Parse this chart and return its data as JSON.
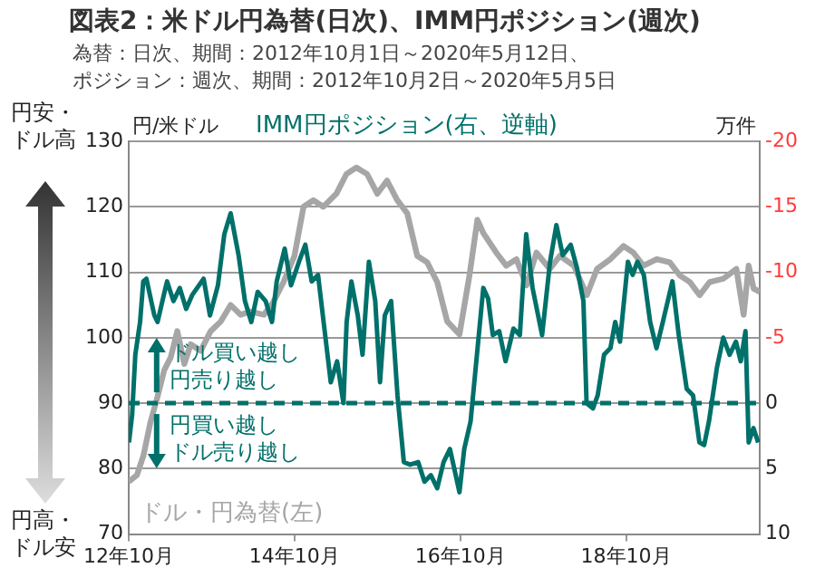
{
  "chart_data": {
    "type": "line",
    "title": "図表2：米ドル円為替(日次)、IMM円ポジション(週次)",
    "subtitle": "為替：日次、期間：2012年10月1日～2020年5月12日、ポジション：週次、期間：2012年10月2日～2020年5月5日",
    "ylabel": "円/米ドル",
    "y2label": "万件",
    "annotations": [
      "円安・",
      "ドル高",
      "円高・",
      "ドル安",
      {
        "text": "ドル買い越し",
        "x": "2013-02-01",
        "y": 90
      },
      "円売り越し",
      {
        "text": "円買い越し",
        "x": "2013-02-01",
        "y": 90
      },
      "ドル売り越し"
    ],
    "series": [
      {
        "name": "IMM円ポジション(右、逆軸)",
        "color": "#00706a",
        "axis": "y2",
        "x": [
          "2012-10-02",
          "2012-10-16",
          "2012-10-30",
          "2012-11-20",
          "2012-12-04",
          "2012-12-18",
          "2013-01-08",
          "2013-01-22",
          "2013-02-05",
          "2013-03-05",
          "2013-03-19",
          "2013-04-16",
          "2013-05-14",
          "2013-06-11",
          "2013-07-09",
          "2013-08-27",
          "2013-09-24",
          "2013-10-29",
          "2013-11-26",
          "2013-12-24",
          "2014-01-28",
          "2014-02-25",
          "2014-03-25",
          "2014-04-22",
          "2014-05-27",
          "2014-06-24",
          "2014-07-15",
          "2014-08-19",
          "2014-09-16",
          "2014-10-21",
          "2014-11-18",
          "2014-12-16",
          "2015-01-13",
          "2015-02-10",
          "2015-03-10",
          "2015-04-07",
          "2015-05-05",
          "2015-05-19",
          "2015-06-09",
          "2015-07-07",
          "2015-07-28",
          "2015-08-25",
          "2015-09-22",
          "2015-10-13",
          "2015-11-03",
          "2015-12-01",
          "2015-12-29",
          "2016-01-26",
          "2016-02-23",
          "2016-03-29",
          "2016-04-26",
          "2016-05-24",
          "2016-06-21",
          "2016-07-19",
          "2016-08-16",
          "2016-09-27",
          "2016-10-18",
          "2016-11-15",
          "2016-12-13",
          "2017-01-10",
          "2017-01-31",
          "2017-02-21",
          "2017-03-21",
          "2017-04-18",
          "2017-05-23",
          "2017-06-20",
          "2017-07-18",
          "2017-08-15",
          "2017-09-26",
          "2017-10-31",
          "2017-11-28",
          "2017-12-26",
          "2018-01-30",
          "2018-02-27",
          "2018-03-27",
          "2018-04-10",
          "2018-05-08",
          "2018-05-29",
          "2018-06-26",
          "2018-07-24",
          "2018-08-14",
          "2018-09-04",
          "2018-10-09",
          "2018-10-30",
          "2018-11-20",
          "2018-12-18",
          "2019-01-15",
          "2019-02-12",
          "2019-03-12",
          "2019-04-23",
          "2019-05-21",
          "2019-06-25",
          "2019-07-23",
          "2019-08-20",
          "2019-09-10",
          "2019-10-01",
          "2019-11-05",
          "2019-12-03",
          "2019-12-31",
          "2020-01-28",
          "2020-02-18",
          "2020-03-10",
          "2020-03-24",
          "2020-04-14",
          "2020-05-05"
        ],
        "values": [
          3.0,
          0.9,
          -3.7,
          -6.2,
          -9.3,
          -9.5,
          -7.8,
          -6.7,
          -6.2,
          -8.3,
          -9.3,
          -7.8,
          -8.8,
          -7.2,
          -8.3,
          -9.5,
          -6.7,
          -9.0,
          -12.9,
          -14.5,
          -11.3,
          -7.8,
          -6.2,
          -8.5,
          -7.8,
          -6.2,
          -9.3,
          -11.8,
          -9.0,
          -10.8,
          -12.1,
          -9.3,
          -9.8,
          -5.7,
          -1.6,
          -3.2,
          0,
          -6.2,
          -9.3,
          -6.7,
          -3.7,
          -10.8,
          -7.8,
          -1.6,
          -6.7,
          -7.8,
          -0.6,
          4.5,
          4.7,
          4.5,
          6.0,
          5.5,
          6.5,
          4.5,
          3.5,
          6.8,
          3.5,
          1.4,
          -3.7,
          -8.8,
          -8.0,
          -5.2,
          -5.5,
          -3.2,
          -5.7,
          -5.2,
          -12.9,
          -8.8,
          -5.2,
          -10.8,
          -13.6,
          -11.3,
          -12.1,
          -10.3,
          -7.8,
          0,
          0.4,
          -0.6,
          -3.7,
          -4.2,
          -6.2,
          -4.7,
          -10.8,
          -9.8,
          -10.8,
          -9.8,
          -6.2,
          -4.2,
          -6.2,
          -9.3,
          -5.2,
          -1.1,
          -0.6,
          3.0,
          3.2,
          1.4,
          -2.7,
          -5.0,
          -3.7,
          -4.7,
          -3.2,
          -5.5,
          3.0,
          1.9,
          3.0
        ]
      },
      {
        "name": "ドル・円為替(左)",
        "color": "#a6a6a6",
        "x": [
          "2012-10-01",
          "2012-11-06",
          "2012-12-05",
          "2013-01-04",
          "2013-02-05",
          "2013-03-06",
          "2013-04-04",
          "2013-05-03",
          "2013-06-03",
          "2013-07-01",
          "2013-08-14",
          "2013-09-27",
          "2013-11-11",
          "2013-12-24",
          "2014-02-06",
          "2014-03-21",
          "2014-05-19",
          "2014-07-01",
          "2014-08-14",
          "2014-10-01",
          "2014-11-10",
          "2014-12-24",
          "2015-02-05",
          "2015-04-04",
          "2015-05-18",
          "2015-07-01",
          "2015-08-17",
          "2015-10-01",
          "2015-11-13",
          "2015-12-28",
          "2016-02-10",
          "2016-03-25",
          "2016-05-08",
          "2016-06-21",
          "2016-08-04",
          "2016-09-27",
          "2016-11-10",
          "2016-12-15",
          "2017-01-10",
          "2017-03-08",
          "2017-04-21",
          "2017-06-05",
          "2017-07-19",
          "2017-09-01",
          "2017-10-30",
          "2017-12-13",
          "2018-02-13",
          "2018-04-11",
          "2018-05-26",
          "2018-07-24",
          "2018-09-20",
          "2018-11-02",
          "2018-12-16",
          "2019-02-13",
          "2019-04-12",
          "2019-05-26",
          "2019-07-09",
          "2019-08-21",
          "2019-10-04",
          "2019-12-03",
          "2020-01-30",
          "2020-03-02",
          "2020-03-24",
          "2020-04-15",
          "2020-05-12"
        ],
        "values": [
          78,
          79,
          82,
          87,
          91,
          95,
          97,
          101,
          96,
          99,
          98,
          101,
          102.5,
          105,
          103.5,
          104,
          103.5,
          105.5,
          108.5,
          112.5,
          120,
          121,
          120,
          122,
          125,
          126,
          125,
          122,
          124,
          121,
          119,
          112.5,
          111.5,
          108.5,
          102.5,
          100.5,
          109.5,
          118,
          116,
          113,
          111,
          112,
          108,
          113,
          110.5,
          112.5,
          111,
          106.5,
          110.5,
          112,
          114,
          113,
          111,
          112,
          111.5,
          109.5,
          108.5,
          106.5,
          108.5,
          109,
          110.5,
          103.5,
          111,
          107.5,
          107
        ]
      }
    ],
    "xlim": [
      "2012-10-01",
      "2020-05-12"
    ],
    "xticks": [
      {
        "value": "2012-10-01",
        "label": "12年10月"
      },
      {
        "value": "2014-10-01",
        "label": "14年10月"
      },
      {
        "value": "2016-10-01",
        "label": "16年10月"
      },
      {
        "value": "2018-10-01",
        "label": "18年10月"
      }
    ],
    "ylim": [
      70,
      130
    ],
    "yticks": [
      70,
      80,
      90,
      100,
      110,
      120,
      130
    ],
    "y2lim": [
      10,
      -20
    ],
    "y2ticks": [
      -20,
      -15,
      -10,
      -5,
      0,
      5,
      10
    ],
    "ref_lines": [
      {
        "axis": "y2",
        "value": 0,
        "color": "#00706a",
        "line_style": "dashed"
      }
    ],
    "grid": "y",
    "legend": false,
    "marker": "none",
    "line_style": "solid"
  }
}
